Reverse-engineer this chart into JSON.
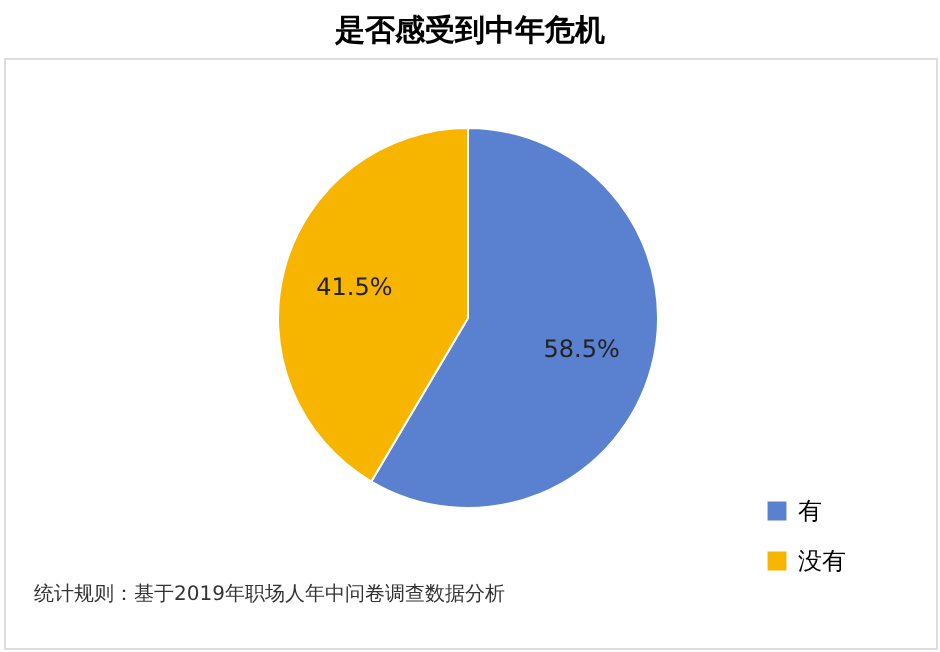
{
  "chart_data": {
    "type": "pie",
    "title": "是否感受到中年危机",
    "categories": [
      "有",
      "没有"
    ],
    "values": [
      58.5,
      41.5
    ],
    "colors": [
      "#5a80d0",
      "#f7b500"
    ],
    "value_labels": [
      "58.5%",
      "41.5%"
    ],
    "legend": "bottom right",
    "annotations": [
      "统计规则：基于2019年职场人年中问卷调查数据分析"
    ]
  }
}
